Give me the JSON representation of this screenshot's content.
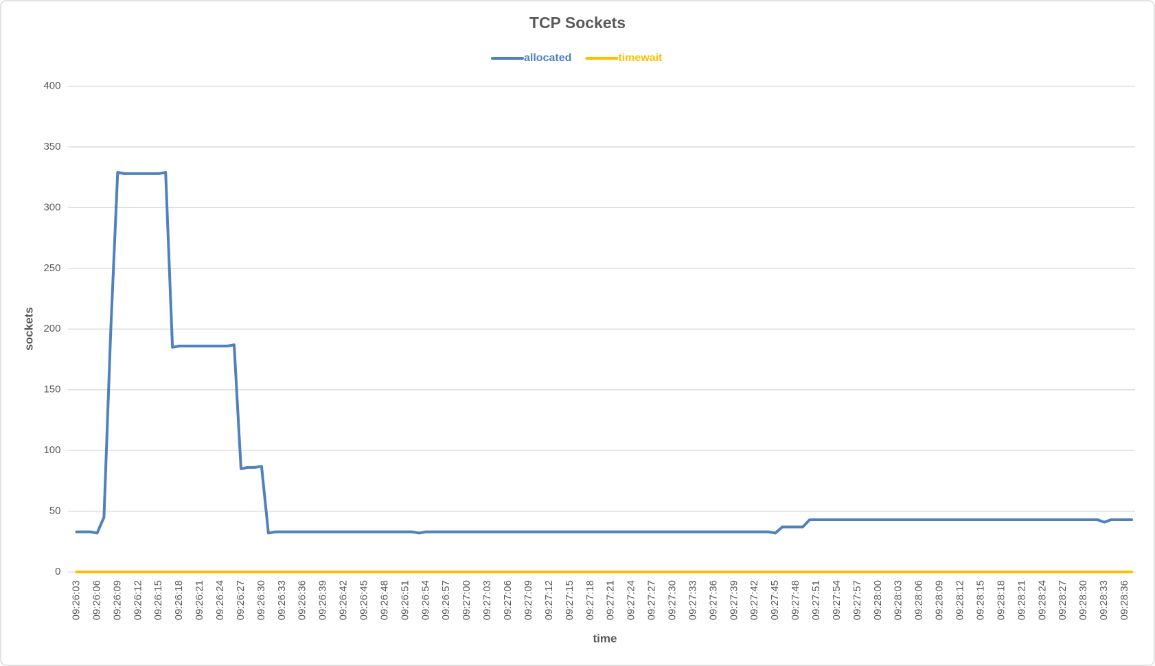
{
  "chart_data": {
    "type": "line",
    "title": "TCP Sockets",
    "xlabel": "time",
    "ylabel": "sockets",
    "categories": [
      "09:26:03",
      null,
      null,
      "09:26:06",
      null,
      null,
      "09:26:09",
      null,
      null,
      "09:26:12",
      null,
      null,
      "09:26:15",
      null,
      null,
      "09:26:18",
      null,
      null,
      "09:26:21",
      null,
      null,
      "09:26:24",
      null,
      null,
      "09:26:27",
      null,
      null,
      "09:26:30",
      null,
      null,
      "09:26:33",
      null,
      null,
      "09:26:36",
      null,
      null,
      "09:26:39",
      null,
      null,
      "09:26:42",
      null,
      null,
      "09:26:45",
      null,
      null,
      "09:26:48",
      null,
      null,
      "09:26:51",
      null,
      null,
      "09:26:54",
      null,
      null,
      "09:26:57",
      null,
      null,
      "09:27:00",
      null,
      null,
      "09:27:03",
      null,
      null,
      "09:27:06",
      null,
      null,
      "09:27:09",
      null,
      null,
      "09:27:12",
      null,
      null,
      "09:27:15",
      null,
      null,
      "09:27:18",
      null,
      null,
      "09:27:21",
      null,
      null,
      "09:27:24",
      null,
      null,
      "09:27:27",
      null,
      null,
      "09:27:30",
      null,
      null,
      "09:27:33",
      null,
      null,
      "09:27:36",
      null,
      null,
      "09:27:39",
      null,
      null,
      "09:27:42",
      null,
      null,
      "09:27:45",
      null,
      null,
      "09:27:48",
      null,
      null,
      "09:27:51",
      null,
      null,
      "09:27:54",
      null,
      null,
      "09:27:57",
      null,
      null,
      "09:28:00",
      null,
      null,
      "09:28:03",
      null,
      null,
      "09:28:06",
      null,
      null,
      "09:28:09",
      null,
      null,
      "09:28:12",
      null,
      null,
      "09:28:15",
      null,
      null,
      "09:28:18",
      null,
      null,
      "09:28:21",
      null,
      null,
      "09:28:24",
      null,
      null,
      "09:28:27",
      null,
      null,
      "09:28:30",
      null,
      null,
      "09:28:33",
      null,
      null,
      "09:28:36",
      null
    ],
    "series": [
      {
        "name": "allocated",
        "color": "#4f81bd",
        "values": [
          33,
          33,
          33,
          32,
          45,
          200,
          329,
          328,
          328,
          328,
          328,
          328,
          328,
          329,
          185,
          186,
          186,
          186,
          186,
          186,
          186,
          186,
          186,
          187,
          85,
          86,
          86,
          87,
          32,
          33,
          33,
          33,
          33,
          33,
          33,
          33,
          33,
          33,
          33,
          33,
          33,
          33,
          33,
          33,
          33,
          33,
          33,
          33,
          33,
          33,
          32,
          33,
          33,
          33,
          33,
          33,
          33,
          33,
          33,
          33,
          33,
          33,
          33,
          33,
          33,
          33,
          33,
          33,
          33,
          33,
          33,
          33,
          33,
          33,
          33,
          33,
          33,
          33,
          33,
          33,
          33,
          33,
          33,
          33,
          33,
          33,
          33,
          33,
          33,
          33,
          33,
          33,
          33,
          33,
          33,
          33,
          33,
          33,
          33,
          33,
          33,
          33,
          32,
          37,
          37,
          37,
          37,
          43,
          43,
          43,
          43,
          43,
          43,
          43,
          43,
          43,
          43,
          43,
          43,
          43,
          43,
          43,
          43,
          43,
          43,
          43,
          43,
          43,
          43,
          43,
          43,
          43,
          43,
          43,
          43,
          43,
          43,
          43,
          43,
          43,
          43,
          43,
          43,
          43,
          43,
          43,
          43,
          43,
          43,
          43,
          41,
          43,
          43,
          43,
          43
        ]
      },
      {
        "name": "timewait",
        "color": "#ffc000",
        "values": [
          0,
          0,
          0,
          0,
          0,
          0,
          0,
          0,
          0,
          0,
          0,
          0,
          0,
          0,
          0,
          0,
          0,
          0,
          0,
          0,
          0,
          0,
          0,
          0,
          0,
          0,
          0,
          0,
          0,
          0,
          0,
          0,
          0,
          0,
          0,
          0,
          0,
          0,
          0,
          0,
          0,
          0,
          0,
          0,
          0,
          0,
          0,
          0,
          0,
          0,
          0,
          0,
          0,
          0,
          0,
          0,
          0,
          0,
          0,
          0,
          0,
          0,
          0,
          0,
          0,
          0,
          0,
          0,
          0,
          0,
          0,
          0,
          0,
          0,
          0,
          0,
          0,
          0,
          0,
          0,
          0,
          0,
          0,
          0,
          0,
          0,
          0,
          0,
          0,
          0,
          0,
          0,
          0,
          0,
          0,
          0,
          0,
          0,
          0,
          0,
          0,
          0,
          0,
          0,
          0,
          0,
          0,
          0,
          0,
          0,
          0,
          0,
          0,
          0,
          0,
          0,
          0,
          0,
          0,
          0,
          0,
          0,
          0,
          0,
          0,
          0,
          0,
          0,
          0,
          0,
          0,
          0,
          0,
          0,
          0,
          0,
          0,
          0,
          0,
          0,
          0,
          0,
          0,
          0,
          0,
          0,
          0,
          0,
          0,
          0,
          0,
          0,
          0,
          0,
          0
        ]
      }
    ],
    "ylim": [
      0,
      400
    ],
    "yticks": [
      0,
      50,
      100,
      150,
      200,
      250,
      300,
      350,
      400
    ],
    "grid": true,
    "legend": "top"
  }
}
